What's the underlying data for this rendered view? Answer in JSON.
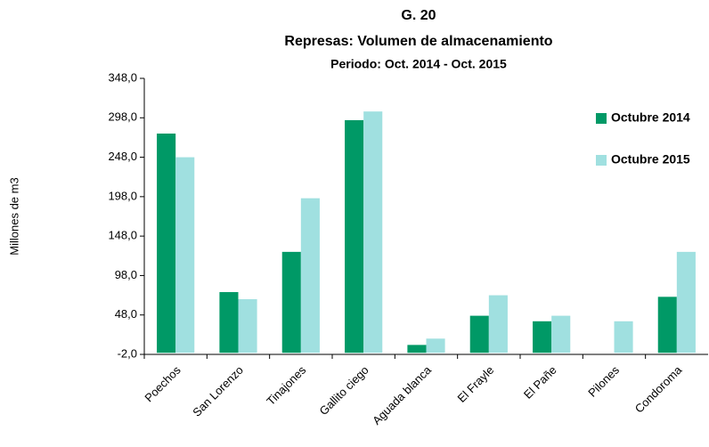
{
  "chart_data": {
    "type": "bar",
    "title": "G. 20",
    "subtitle": "Represas: Volumen de almacenamiento",
    "period": "Periodo: Oct. 2014 -  Oct. 2015",
    "y_label": "Millones de m3",
    "categories": [
      "Poechos",
      "San Lorenzo",
      "Tinajones",
      "Gallito ciego",
      "Aguada blanca",
      "El Frayle",
      "El Pañe",
      "Pilones",
      "Condoroma"
    ],
    "series": [
      {
        "name": "Octubre 2014",
        "color": "#009966",
        "values": [
          278,
          77,
          128,
          295,
          10,
          47,
          40,
          0,
          71
        ]
      },
      {
        "name": "Octubre 2015",
        "color": "#a0e0e0",
        "values": [
          248,
          68,
          196,
          306,
          18,
          73,
          47,
          40,
          128
        ]
      }
    ],
    "ylim": [
      -2,
      348
    ],
    "yticks": [
      {
        "value": -2,
        "label": "-2,0"
      },
      {
        "value": 48,
        "label": "48,0"
      },
      {
        "value": 98,
        "label": "98,0"
      },
      {
        "value": 148,
        "label": "148,0"
      },
      {
        "value": 198,
        "label": "198,0"
      },
      {
        "value": 248,
        "label": "248,0"
      },
      {
        "value": 298,
        "label": "298,0"
      },
      {
        "value": 348,
        "label": "348,0"
      }
    ],
    "legend": "upper right"
  }
}
